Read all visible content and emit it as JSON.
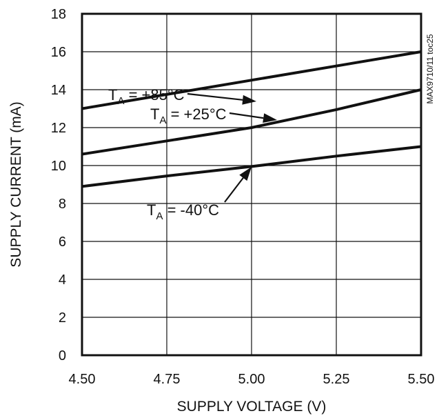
{
  "chart_data": {
    "type": "line",
    "xlabel": "SUPPLY VOLTAGE (V)",
    "ylabel": "SUPPLY CURRENT (mA)",
    "xlim": [
      4.5,
      5.5
    ],
    "ylim": [
      0,
      18
    ],
    "x_ticks": [
      "4.50",
      "4.75",
      "5.00",
      "5.25",
      "5.50"
    ],
    "x_tick_values": [
      4.5,
      4.75,
      5.0,
      5.25,
      5.5
    ],
    "y_ticks": [
      "0",
      "2",
      "4",
      "6",
      "8",
      "10",
      "12",
      "14",
      "16",
      "18"
    ],
    "y_tick_values": [
      0,
      2,
      4,
      6,
      8,
      10,
      12,
      14,
      16,
      18
    ],
    "grid": true,
    "reference": "MAX9710/11 toc25",
    "series": [
      {
        "name": "TA = +85°C",
        "label_main": "T",
        "label_sub": "A",
        "label_rest": " = +85°C",
        "x": [
          4.5,
          5.5
        ],
        "y": [
          13.0,
          16.0
        ]
      },
      {
        "name": "TA = +25°C",
        "label_main": "T",
        "label_sub": "A",
        "label_rest": " = +25°C",
        "x": [
          4.5,
          4.75,
          5.0,
          5.25,
          5.5
        ],
        "y": [
          10.6,
          11.3,
          12.0,
          12.95,
          14.0
        ]
      },
      {
        "name": "TA = -40°C",
        "label_main": "T",
        "label_sub": "A",
        "label_rest": " = -40°C",
        "x": [
          4.5,
          4.75,
          5.0,
          5.25,
          5.5
        ],
        "y": [
          8.9,
          9.45,
          9.95,
          10.5,
          11.0
        ]
      }
    ]
  }
}
